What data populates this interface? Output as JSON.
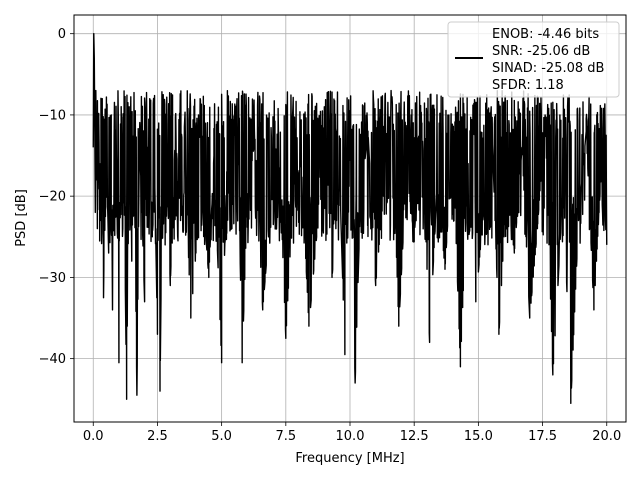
{
  "chart_data": {
    "type": "line",
    "title": "",
    "xlabel": "Frequency [MHz]",
    "ylabel": "PSD [dB]",
    "xlim": [
      -0.75,
      20.75
    ],
    "ylim": [
      -47.8,
      2.3
    ],
    "xticks": [
      0.0,
      2.5,
      5.0,
      7.5,
      10.0,
      12.5,
      15.0,
      17.5,
      20.0
    ],
    "xtick_labels": [
      "0.0",
      "2.5",
      "5.0",
      "7.5",
      "10.0",
      "12.5",
      "15.0",
      "17.5",
      "20.0"
    ],
    "yticks": [
      0,
      -10,
      -20,
      -30,
      -40
    ],
    "ytick_labels": [
      "0",
      "−10",
      "−20",
      "−30",
      "−40"
    ],
    "grid": true,
    "legend_position": "top-right",
    "legend_lines": [
      "ENOB: -4.46 bits",
      "SNR: -25.06 dB",
      "SINAD: -25.08 dB",
      "SFDR: 1.18"
    ],
    "series": [
      {
        "color": "#000000",
        "description": "Noise-like PSD trace from 0 to 20 MHz: near 0 dB at DC, fluctuating mostly between about -7 and -25 dB, with deep dips to about -45 dB.",
        "x": [
          0.0,
          0.02,
          0.04,
          0.06,
          0.08,
          0.1,
          0.13,
          0.16,
          0.2,
          0.25,
          0.3,
          0.35,
          0.4,
          0.45,
          0.5,
          0.6,
          0.7,
          0.75,
          0.8,
          0.9,
          1.0,
          1.1,
          1.15,
          1.2,
          1.3,
          1.4,
          1.5,
          1.6,
          1.7,
          1.8,
          1.9,
          2.0,
          2.1,
          2.2,
          2.3,
          2.4,
          2.5,
          2.55,
          2.6,
          2.7,
          2.8,
          2.9,
          3.0,
          3.2,
          3.4,
          3.6,
          3.8,
          4.0,
          4.1,
          4.3,
          4.5,
          4.7,
          5.0,
          5.2,
          5.4,
          5.6,
          5.8,
          6.0,
          6.3,
          6.6,
          6.9,
          7.2,
          7.5,
          7.8,
          8.1,
          8.4,
          8.7,
          9.0,
          9.3,
          9.6,
          9.8,
          10.0,
          10.2,
          10.4,
          10.7,
          11.0,
          11.3,
          11.6,
          11.9,
          12.2,
          12.5,
          12.8,
          13.1,
          13.4,
          13.7,
          14.0,
          14.3,
          14.6,
          14.9,
          15.2,
          15.5,
          15.8,
          16.1,
          16.4,
          16.7,
          17.0,
          17.3,
          17.6,
          17.9,
          18.1,
          18.3,
          18.6,
          18.9,
          19.2,
          19.5,
          19.8,
          20.0
        ],
        "y": [
          -14,
          0.0,
          -3,
          -12,
          -22,
          -7,
          -18,
          -24,
          -11,
          -16,
          -23,
          -8,
          -32.5,
          -19,
          -13,
          -27,
          -10,
          -34,
          -21,
          -15,
          -40.5,
          -12,
          -24,
          -18,
          -45,
          -9,
          -28,
          -17,
          -44.5,
          -13,
          -22,
          -33,
          -16,
          -8,
          -25,
          -19,
          -37,
          -11,
          -44,
          -14,
          -26,
          -20,
          -31,
          -12,
          -23,
          -18,
          -35,
          -27,
          -10,
          -21,
          -30,
          -15,
          -40.5,
          -17,
          -24,
          -8,
          -40.5,
          -20,
          -13,
          -34,
          -22,
          -11,
          -37.5,
          -19,
          -16,
          -36,
          -25,
          -9,
          -30,
          -18,
          -39.5,
          -14,
          -43,
          -21,
          -12,
          -31,
          -20,
          -7,
          -36,
          -17,
          -25,
          -11,
          -38,
          -18,
          -29,
          -13,
          -41,
          -16,
          -33,
          -22,
          -9,
          -37,
          -19,
          -27,
          -14,
          -35,
          -24,
          -10,
          -42,
          -31,
          -18,
          -45.5,
          -23,
          -12,
          -34,
          -16,
          -26
        ]
      }
    ]
  }
}
